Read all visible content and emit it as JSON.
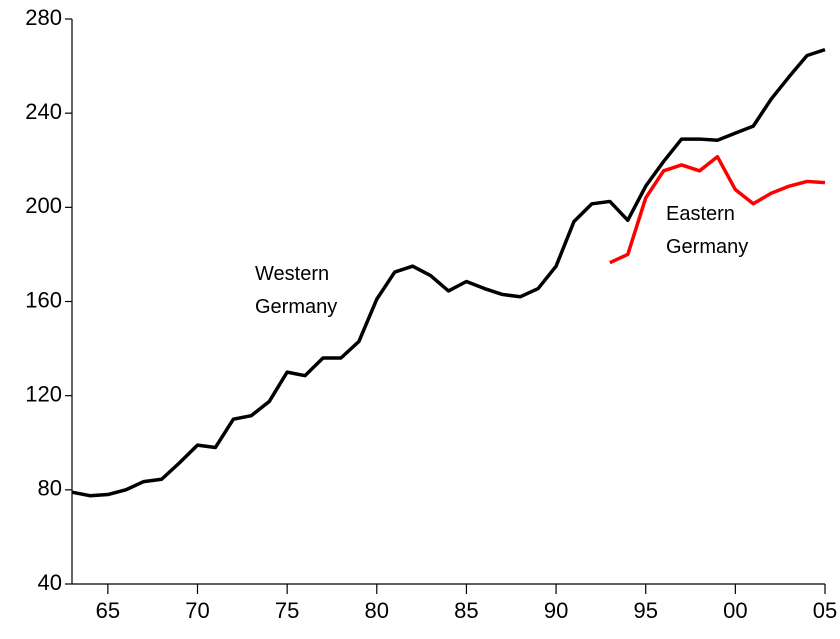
{
  "chart_data": {
    "type": "line",
    "x": [
      1963,
      1964,
      1965,
      1966,
      1967,
      1968,
      1969,
      1970,
      1971,
      1972,
      1973,
      1974,
      1975,
      1976,
      1977,
      1978,
      1979,
      1980,
      1981,
      1982,
      1983,
      1984,
      1985,
      1986,
      1987,
      1988,
      1989,
      1990,
      1991,
      1992,
      1993,
      1994,
      1995,
      1996,
      1997,
      1998,
      1999,
      2000,
      2001,
      2002,
      2003,
      2004,
      2005
    ],
    "series": [
      {
        "name": "Western Germany",
        "color": "#000000",
        "values": [
          79,
          77.5,
          78,
          80,
          83.5,
          84.5,
          91.5,
          99,
          98,
          110,
          111.5,
          117.5,
          130,
          128.5,
          136,
          136,
          143,
          161,
          172.5,
          175,
          171,
          164.5,
          168.5,
          165.5,
          163,
          162,
          165.5,
          175,
          194,
          201.5,
          202.5,
          194.5,
          209,
          219.5,
          229,
          229,
          228.5,
          231.5,
          234.5,
          246,
          255.5,
          264.5,
          267
        ]
      },
      {
        "name": "Eastern Germany",
        "color": "#ff0000",
        "values": [
          null,
          null,
          null,
          null,
          null,
          null,
          null,
          null,
          null,
          null,
          null,
          null,
          null,
          null,
          null,
          null,
          null,
          null,
          null,
          null,
          null,
          null,
          null,
          null,
          null,
          null,
          null,
          null,
          null,
          null,
          176.5,
          180,
          204,
          215.5,
          218,
          215.5,
          221.5,
          207.5,
          201.5,
          206,
          209,
          211,
          210.5
        ]
      }
    ],
    "xlim": [
      1963,
      2005
    ],
    "xticks": [
      {
        "value": 1965,
        "label": "65"
      },
      {
        "value": 1970,
        "label": "70"
      },
      {
        "value": 1975,
        "label": "75"
      },
      {
        "value": 1980,
        "label": "80"
      },
      {
        "value": 1985,
        "label": "85"
      },
      {
        "value": 1990,
        "label": "90"
      },
      {
        "value": 1995,
        "label": "95"
      },
      {
        "value": 2000,
        "label": "00"
      },
      {
        "value": 2005,
        "label": "05"
      }
    ],
    "ylim": [
      40,
      280
    ],
    "yticks": [
      40,
      80,
      120,
      160,
      200,
      240,
      280
    ]
  }
}
